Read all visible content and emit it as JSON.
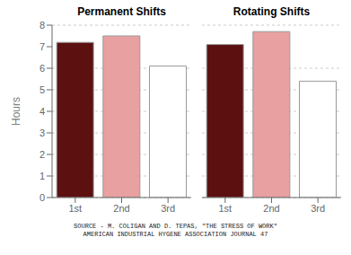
{
  "chart_data": {
    "type": "bar",
    "categories": [
      "1st",
      "2nd",
      "3rd"
    ],
    "series": [
      {
        "name": "Permanent Shifts",
        "values": [
          7.2,
          7.5,
          6.1
        ],
        "colors": [
          "#5c1010",
          "#e8a0a0",
          "#ffffff"
        ]
      },
      {
        "name": "Rotating Shifts",
        "values": [
          7.1,
          7.7,
          5.4
        ],
        "colors": [
          "#5c1010",
          "#e8a0a0",
          "#ffffff"
        ]
      }
    ],
    "ylabel": "Hours",
    "ylim": [
      0,
      8
    ],
    "yticks": [
      0,
      1,
      2,
      3,
      4,
      5,
      6,
      7,
      8
    ],
    "grid": true,
    "annotations": [
      "SOURCE - M. COLIGAN AND D. TEPAS, \"THE STRESS OF WORK\"\nAMERICAN INDUSTRIAL HYGENE ASSOCIATION JOURNAL 47"
    ]
  }
}
